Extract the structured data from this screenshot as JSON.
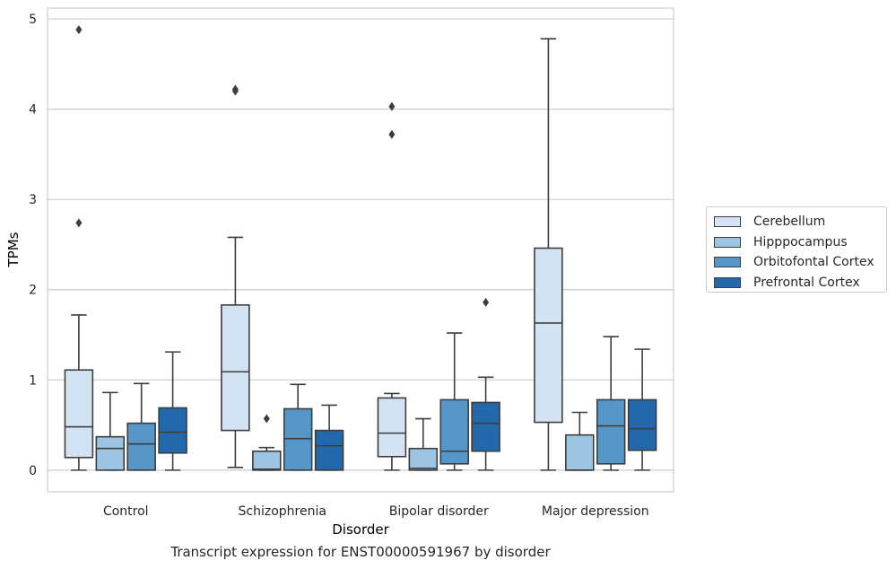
{
  "chart_data": {
    "type": "box",
    "xlabel": "Disorder",
    "ylabel": "TPMs",
    "caption": "Transcript expression for ENST00000591967 by disorder",
    "ylim": [
      -0.24,
      5.12
    ],
    "yticks": [
      0,
      1,
      2,
      3,
      4,
      5
    ],
    "grid": true,
    "legend_position": "right",
    "categories": [
      "Control",
      "Schizophrenia",
      "Bipolar disorder",
      "Major depression"
    ],
    "series": [
      {
        "name": "Cerebellum",
        "color": "#d4e3f3",
        "boxes": [
          {
            "min": 0.0,
            "q1": 0.14,
            "median": 0.48,
            "q3": 1.11,
            "max": 1.72,
            "outliers": [
              2.74,
              4.88
            ]
          },
          {
            "min": 0.03,
            "q1": 0.44,
            "median": 1.09,
            "q3": 1.83,
            "max": 2.58,
            "outliers": [
              4.2,
              4.22
            ]
          },
          {
            "min": 0.0,
            "q1": 0.15,
            "median": 0.41,
            "q3": 0.8,
            "max": 0.85,
            "outliers": [
              3.72,
              4.03
            ]
          },
          {
            "min": 0.0,
            "q1": 0.53,
            "median": 1.63,
            "q3": 2.46,
            "max": 4.78,
            "outliers": []
          }
        ]
      },
      {
        "name": "Hipppocampus",
        "color": "#9dc4e0",
        "boxes": [
          {
            "min": 0.0,
            "q1": 0.0,
            "median": 0.24,
            "q3": 0.37,
            "max": 0.86,
            "outliers": []
          },
          {
            "min": 0.0,
            "q1": 0.0,
            "median": 0.01,
            "q3": 0.21,
            "max": 0.25,
            "outliers": [
              0.57
            ]
          },
          {
            "min": 0.0,
            "q1": 0.0,
            "median": 0.02,
            "q3": 0.24,
            "max": 0.57,
            "outliers": []
          },
          {
            "min": 0.0,
            "q1": 0.0,
            "median": 0.0,
            "q3": 0.39,
            "max": 0.64,
            "outliers": []
          }
        ]
      },
      {
        "name": "Orbitofontal Cortex",
        "color": "#5696c9",
        "boxes": [
          {
            "min": 0.0,
            "q1": 0.0,
            "median": 0.29,
            "q3": 0.52,
            "max": 0.96,
            "outliers": []
          },
          {
            "min": 0.0,
            "q1": 0.0,
            "median": 0.35,
            "q3": 0.68,
            "max": 0.95,
            "outliers": []
          },
          {
            "min": 0.0,
            "q1": 0.07,
            "median": 0.21,
            "q3": 0.78,
            "max": 1.52,
            "outliers": []
          },
          {
            "min": 0.0,
            "q1": 0.07,
            "median": 0.49,
            "q3": 0.78,
            "max": 1.48,
            "outliers": []
          }
        ]
      },
      {
        "name": "Prefrontal Cortex",
        "color": "#2468ac",
        "boxes": [
          {
            "min": 0.0,
            "q1": 0.19,
            "median": 0.42,
            "q3": 0.69,
            "max": 1.31,
            "outliers": []
          },
          {
            "min": 0.0,
            "q1": 0.0,
            "median": 0.27,
            "q3": 0.44,
            "max": 0.72,
            "outliers": []
          },
          {
            "min": 0.0,
            "q1": 0.21,
            "median": 0.52,
            "q3": 0.75,
            "max": 1.03,
            "outliers": [
              1.86
            ]
          },
          {
            "min": 0.0,
            "q1": 0.22,
            "median": 0.46,
            "q3": 0.78,
            "max": 1.34,
            "outliers": []
          }
        ]
      }
    ]
  }
}
